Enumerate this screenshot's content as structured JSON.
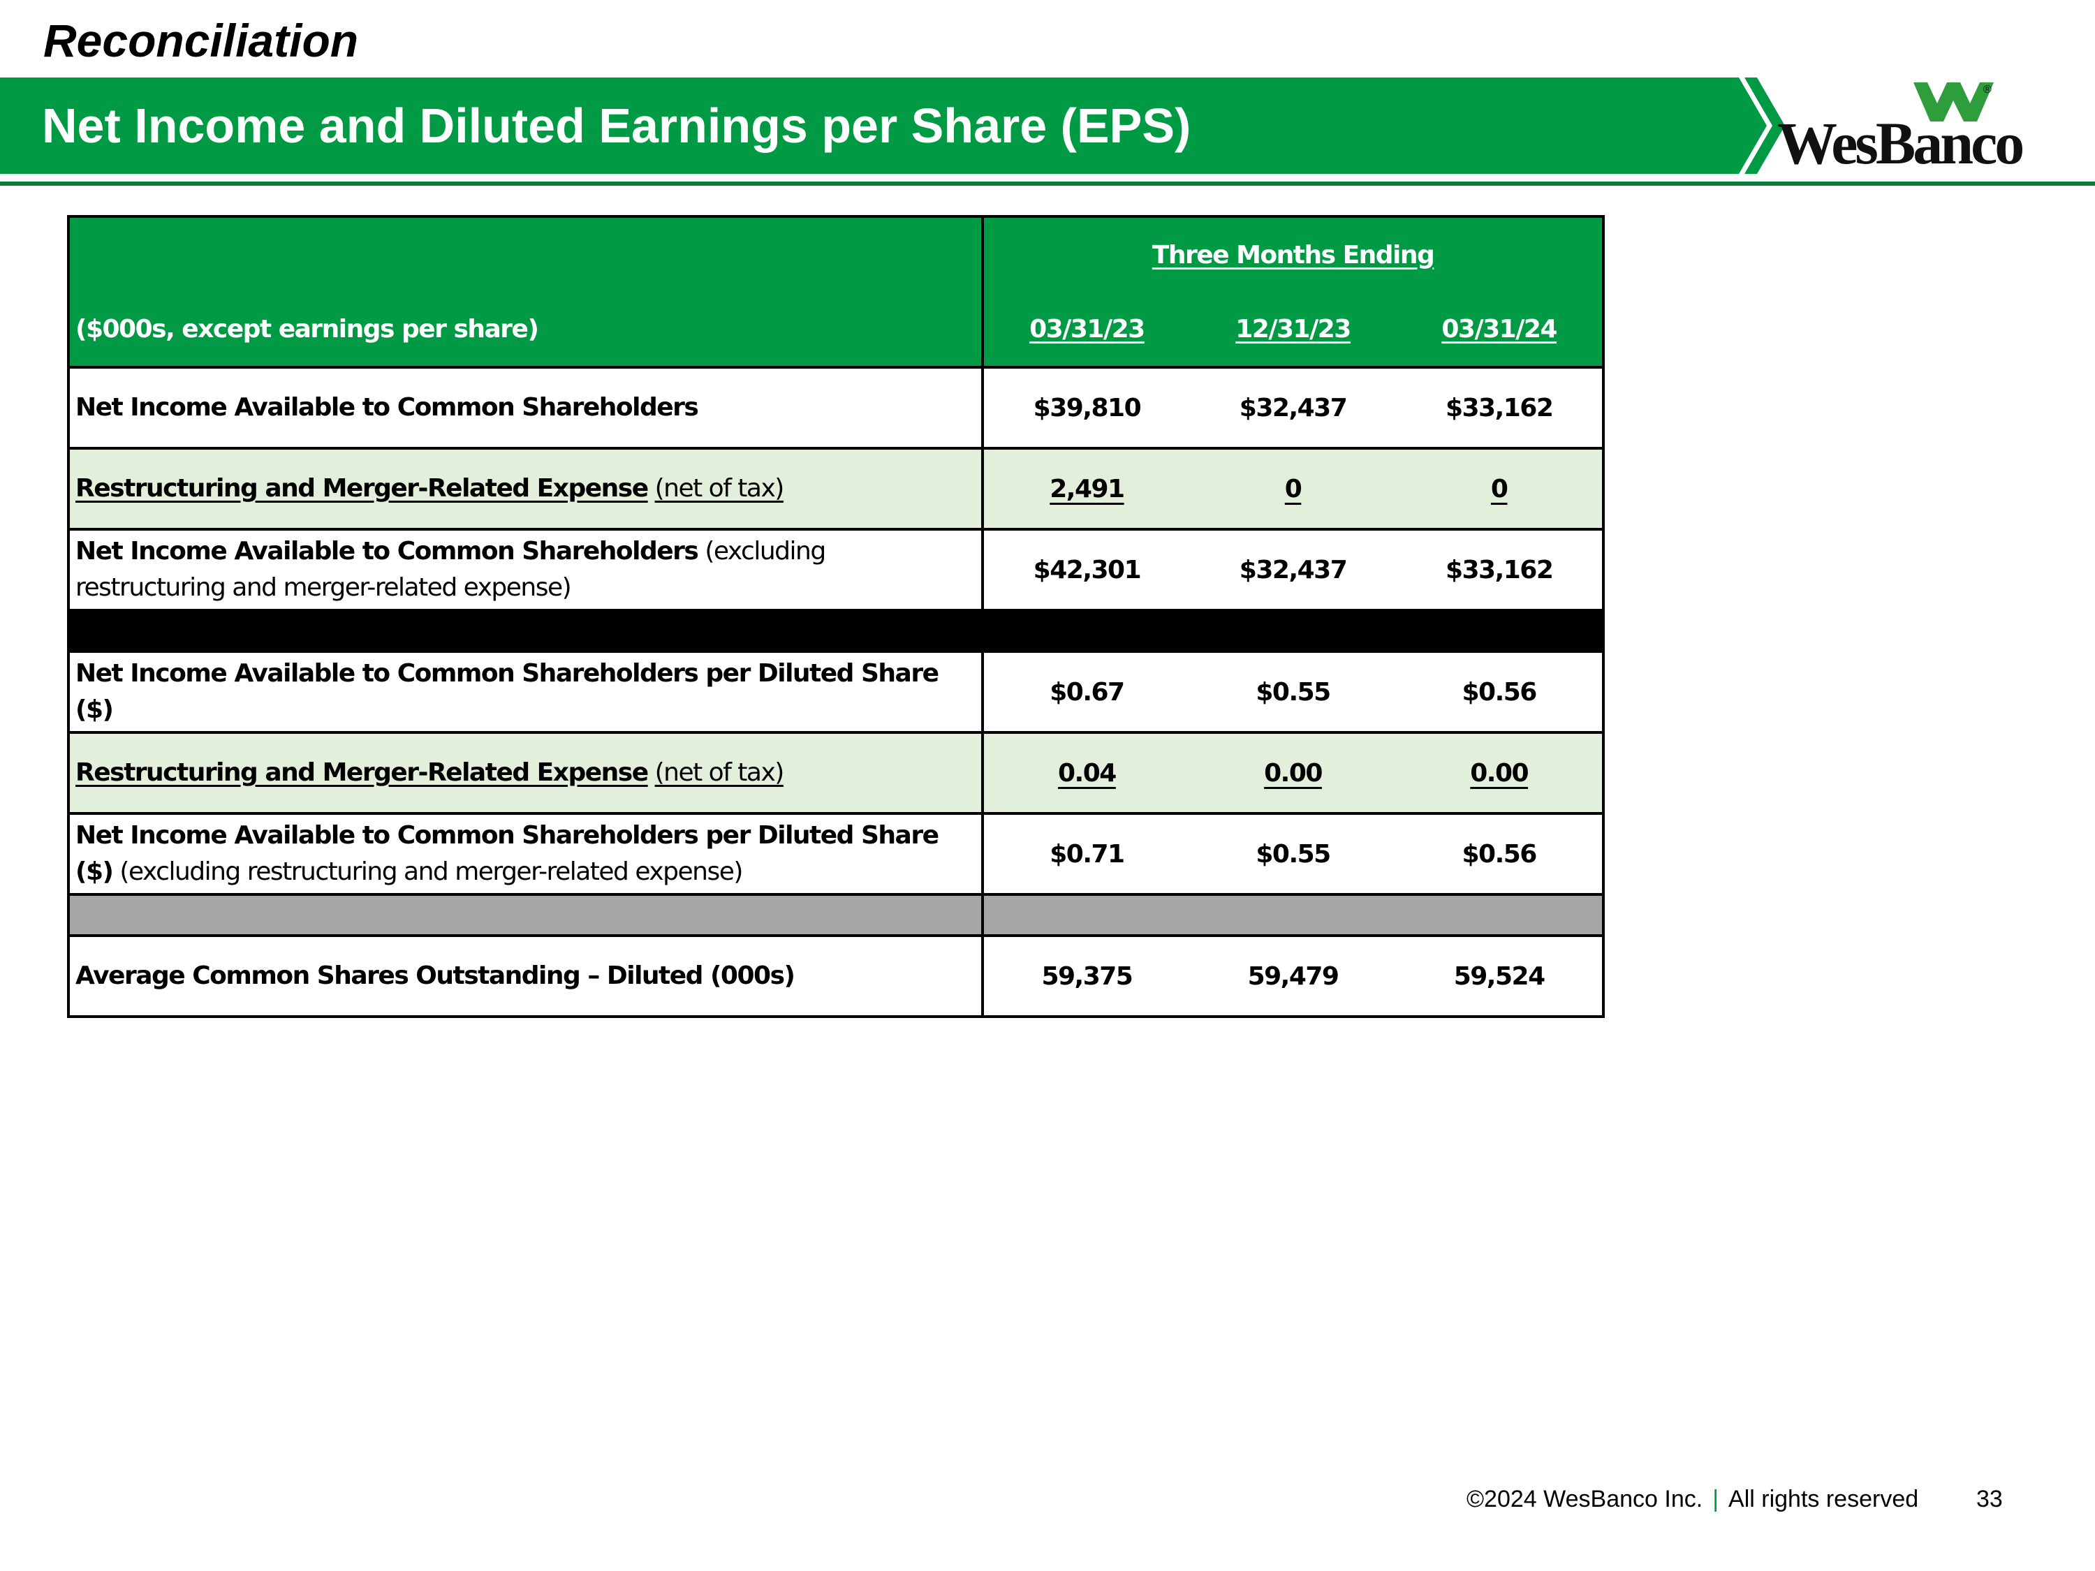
{
  "header": {
    "section": "Reconciliation",
    "title": "Net Income and Diluted Earnings per Share (EPS)",
    "logo_text": "WesBanco",
    "logo_reg": "®"
  },
  "table": {
    "period_header": "Three Months Ending",
    "units_label": "($000s, except earnings per share)",
    "columns": [
      "03/31/23",
      "12/31/23",
      "03/31/24"
    ],
    "rows": [
      {
        "label_bold": "Net Income Available to Common Shareholders",
        "label_normal": "",
        "values": [
          "$39,810",
          "$32,437",
          "$33,162"
        ]
      },
      {
        "label_bold": "Restructuring and Merger-Related Expense",
        "label_normal": "(net of tax)",
        "values": [
          "2,491",
          "0",
          "0"
        ]
      },
      {
        "label_bold": "Net Income Available to Common Shareholders",
        "label_normal": "(excluding restructuring and merger-related expense)",
        "values": [
          "$42,301",
          "$32,437",
          "$33,162"
        ]
      },
      {
        "label_bold": "Net Income Available to Common Shareholders per Diluted Share ($)",
        "label_normal": "",
        "values": [
          "$0.67",
          "$0.55",
          "$0.56"
        ]
      },
      {
        "label_bold": "Restructuring and Merger-Related Expense",
        "label_normal": "(net of tax)",
        "values": [
          "0.04",
          "0.00",
          "0.00"
        ]
      },
      {
        "label_bold": "Net Income Available to Common Shareholders per Diluted Share ($)",
        "label_normal": "(excluding restructuring and merger-related expense)",
        "values": [
          "$0.71",
          "$0.55",
          "$0.56"
        ]
      },
      {
        "label_bold": "Average Common Shares Outstanding – Diluted (000s)",
        "label_normal": "",
        "values": [
          "59,375",
          "59,479",
          "59,524"
        ]
      }
    ]
  },
  "footer": {
    "copyright": "©2024 WesBanco Inc.",
    "separator": "|",
    "rights": "All rights reserved",
    "page_number": "33"
  },
  "colors": {
    "brand_green": "#009a44",
    "shade_green": "#e2efda",
    "separator_gray": "#a6a6a6"
  }
}
